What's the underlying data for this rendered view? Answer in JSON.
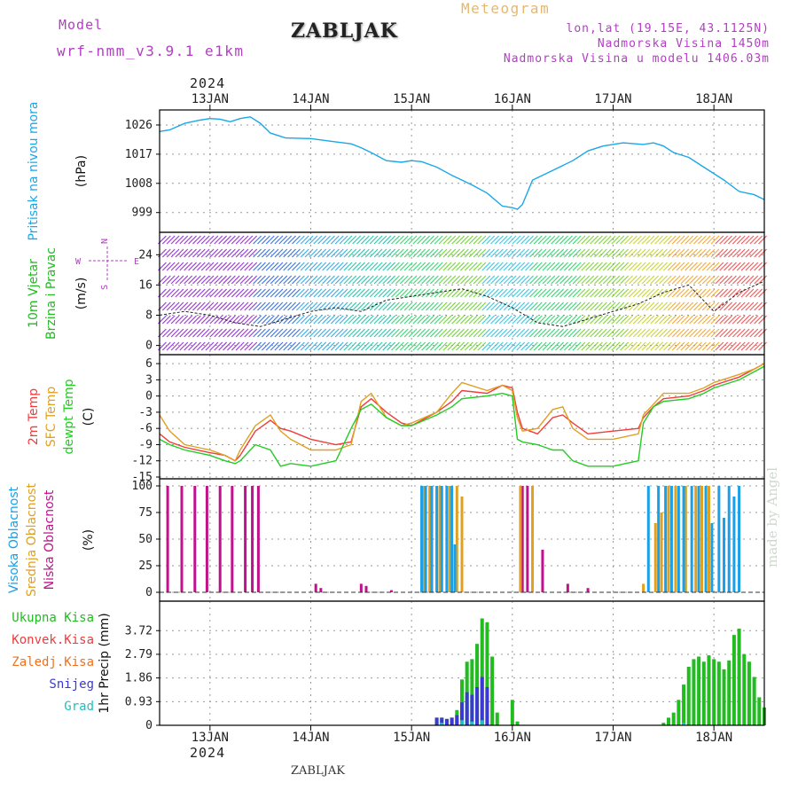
{
  "header": {
    "model_label": "Model",
    "model_name": "wrf-nmm_v3.9.1 e1km",
    "title": "ZABLJAK",
    "meteogram": "Meteogram",
    "lonlat": "lon,lat (19.15E, 43.1125N)",
    "elevation": "Nadmorska Visina 1450m",
    "model_elevation": "Nadmorska Visina u modelu 1406.03m",
    "year_top": "2024",
    "year_bottom": "2024",
    "watermark": "made by Angel",
    "footer": "ZABLJAK"
  },
  "colors": {
    "pressure": "#1aa7e8",
    "temp2m": "#f03c3c",
    "sfc": "#e0a020",
    "dewpt": "#22cc22",
    "high_cloud": "#1aa0e8",
    "mid_cloud": "#e0a020",
    "low_cloud": "#c0128c",
    "total_rain": "#22bb22",
    "conv_rain": "#f03c3c",
    "frozen": "#f07020",
    "snow": "#3a3ad0",
    "hail": "#20c0c0"
  },
  "chart_data": {
    "type": "multi-panel meteogram",
    "x_unit": "days",
    "dates": [
      "13JAN",
      "14JAN",
      "15JAN",
      "16JAN",
      "17JAN",
      "18JAN"
    ],
    "date_days": [
      13,
      14,
      15,
      16,
      17,
      18
    ],
    "xlim": [
      12.5,
      18.5
    ],
    "grid": true,
    "panels": [
      {
        "id": "pressure",
        "type": "line",
        "ylabel_name": "Pritisak na nivou mora",
        "ylabel_unit": "(hPa)",
        "ylim": [
          994,
          1029
        ],
        "yticks": [
          999,
          1008,
          1017,
          1026
        ],
        "series": [
          {
            "color_key": "pressure",
            "x": [
              12.5,
              12.6,
              12.75,
              12.9,
              13.0,
              13.1,
              13.2,
              13.3,
              13.4,
              13.5,
              13.6,
              13.75,
              14.0,
              14.2,
              14.4,
              14.5,
              14.6,
              14.75,
              14.9,
              15.0,
              15.1,
              15.25,
              15.4,
              15.5,
              15.6,
              15.75,
              15.9,
              16.0,
              16.05,
              16.1,
              16.2,
              16.4,
              16.6,
              16.75,
              16.9,
              17.1,
              17.3,
              17.4,
              17.5,
              17.6,
              17.75,
              17.9,
              18.1,
              18.25,
              18.4,
              18.5
            ],
            "y": [
              1024,
              1024.5,
              1026.5,
              1027.5,
              1028,
              1027.8,
              1027,
              1028,
              1028.5,
              1026.5,
              1023.5,
              1022,
              1021.8,
              1021,
              1020.2,
              1019,
              1017.5,
              1015,
              1014.5,
              1015,
              1014.7,
              1013,
              1010.5,
              1009,
              1007.5,
              1005,
              1001,
              1000.5,
              1000,
              1001.5,
              1009,
              1012,
              1015,
              1018,
              1019.5,
              1020.5,
              1020,
              1020.5,
              1019.5,
              1017.5,
              1016,
              1013,
              1009,
              1005.5,
              1004.5,
              1003
            ]
          }
        ]
      },
      {
        "id": "wind",
        "type": "line+wind-barbs",
        "ylabel_name": "10m Vjetar",
        "ylabel_name2": "Brzina i Pravac",
        "ylabel_unit": "(m/s)",
        "compass": [
          "N",
          "W",
          "E",
          "S"
        ],
        "ylim": [
          -1.5,
          29
        ],
        "yticks": [
          0,
          8,
          16,
          24
        ],
        "series": [
          {
            "name": "speed",
            "x": [
              12.5,
              12.75,
              13.0,
              13.25,
              13.5,
              13.75,
              14.0,
              14.25,
              14.5,
              14.75,
              15.0,
              15.25,
              15.5,
              15.75,
              16.0,
              16.25,
              16.5,
              16.75,
              17.0,
              17.25,
              17.5,
              17.75,
              18.0,
              18.25,
              18.5
            ],
            "y": [
              8,
              9,
              8,
              6,
              5,
              7,
              9,
              10,
              9,
              12,
              13,
              14,
              15,
              13,
              10,
              6,
              5,
              7,
              9,
              11,
              14,
              16,
              9,
              14,
              17
            ]
          }
        ]
      },
      {
        "id": "temp",
        "type": "line",
        "ylabel_name": "2m Temp",
        "ylabel_name2": "SFC Temp",
        "ylabel_name3": "dewpt Temp",
        "ylabel_unit": "(C)",
        "ylim": [
          -15,
          7
        ],
        "yticks": [
          -15,
          -12,
          -9,
          -6,
          -3,
          0,
          3,
          6
        ],
        "series": [
          {
            "color_key": "temp2m",
            "x": [
              12.5,
              12.6,
              12.75,
              13.0,
              13.15,
              13.25,
              13.3,
              13.45,
              13.6,
              13.7,
              13.8,
              14.0,
              14.25,
              14.4,
              14.5,
              14.6,
              14.75,
              14.9,
              15.0,
              15.25,
              15.4,
              15.5,
              15.75,
              15.9,
              16.0,
              16.05,
              16.1,
              16.25,
              16.4,
              16.5,
              16.6,
              16.75,
              17.0,
              17.25,
              17.3,
              17.4,
              17.5,
              17.75,
              17.9,
              18.0,
              18.25,
              18.4,
              18.5
            ],
            "y": [
              -7,
              -8.5,
              -9.5,
              -10.5,
              -11,
              -12,
              -11,
              -6.5,
              -4.5,
              -6,
              -6.5,
              -8,
              -9,
              -8.5,
              -2,
              -0.5,
              -3,
              -5,
              -5.5,
              -3,
              -1,
              1,
              0.5,
              2,
              1.5,
              -3,
              -6,
              -7,
              -4,
              -3.5,
              -5,
              -7,
              -6.5,
              -6,
              -4,
              -2,
              -0.5,
              0,
              1,
              2,
              3.5,
              5,
              6
            ]
          },
          {
            "color_key": "sfc",
            "x": [
              12.5,
              12.6,
              12.75,
              13.0,
              13.15,
              13.25,
              13.3,
              13.45,
              13.6,
              13.7,
              13.8,
              14.0,
              14.25,
              14.4,
              14.5,
              14.6,
              14.75,
              14.9,
              15.0,
              15.25,
              15.4,
              15.5,
              15.75,
              15.9,
              16.0,
              16.05,
              16.1,
              16.25,
              16.4,
              16.5,
              16.6,
              16.75,
              17.0,
              17.25,
              17.3,
              17.4,
              17.5,
              17.75,
              17.9,
              18.0,
              18.25,
              18.4,
              18.5
            ],
            "y": [
              -3.5,
              -6.5,
              -9,
              -10,
              -11,
              -12,
              -10,
              -5.5,
              -3.5,
              -6.5,
              -8,
              -10,
              -10,
              -9,
              -1,
              0.5,
              -4,
              -5.5,
              -5,
              -3,
              0.5,
              2.5,
              1,
              2,
              1,
              -4,
              -6.5,
              -6,
              -2.5,
              -2,
              -6,
              -8,
              -8,
              -7,
              -3.5,
              -1.5,
              0.5,
              0.5,
              1.5,
              2.5,
              4,
              5,
              6
            ]
          },
          {
            "color_key": "dewpt",
            "x": [
              12.5,
              12.6,
              12.75,
              13.0,
              13.15,
              13.25,
              13.3,
              13.45,
              13.6,
              13.7,
              13.8,
              14.0,
              14.25,
              14.4,
              14.5,
              14.6,
              14.75,
              14.9,
              15.0,
              15.25,
              15.4,
              15.5,
              15.75,
              15.9,
              16.0,
              16.05,
              16.1,
              16.25,
              16.4,
              16.5,
              16.6,
              16.75,
              17.0,
              17.25,
              17.3,
              17.4,
              17.5,
              17.75,
              17.9,
              18.0,
              18.25,
              18.4,
              18.5
            ],
            "y": [
              -8,
              -9,
              -10,
              -11,
              -12,
              -12.5,
              -12,
              -9,
              -10,
              -13,
              -12.5,
              -13,
              -12,
              -6,
              -2.5,
              -1.5,
              -4,
              -5.5,
              -5.5,
              -3.5,
              -2,
              -0.5,
              0,
              0.5,
              0,
              -8,
              -8.5,
              -9,
              -10,
              -10,
              -12,
              -13,
              -13,
              -12,
              -5,
              -2,
              -1,
              -0.5,
              0.5,
              1.5,
              3,
              4.5,
              5.5
            ]
          }
        ]
      },
      {
        "id": "clouds",
        "type": "bar",
        "ylabel_name": "Visoka Oblacnost",
        "ylabel_name2": "Srednja Oblacnost",
        "ylabel_name3": "Niska Oblacnost",
        "ylabel_unit": "(%)",
        "ylim": [
          0,
          100
        ],
        "yticks": [
          0,
          25,
          50,
          75,
          100
        ],
        "series": [
          {
            "color_key": "low_cloud",
            "x": [
              12.58,
              12.72,
              12.85,
              12.97,
              13.1,
              13.22,
              13.35,
              13.42,
              13.48,
              14.05,
              14.1,
              14.5,
              14.55,
              14.8,
              15.2,
              15.35,
              16.1,
              16.15,
              16.3,
              16.55,
              16.75
            ],
            "y": [
              100,
              100,
              100,
              100,
              100,
              100,
              100,
              100,
              100,
              8,
              4,
              8,
              6,
              2,
              100,
              100,
              100,
              100,
              40,
              8,
              4
            ]
          },
          {
            "color_key": "mid_cloud",
            "x": [
              15.12,
              15.18,
              15.28,
              15.38,
              15.45,
              15.5,
              16.08,
              16.2,
              17.3,
              17.42,
              17.48,
              17.55,
              17.62,
              17.72,
              17.82,
              17.88,
              17.95
            ],
            "y": [
              100,
              100,
              100,
              100,
              100,
              90,
              100,
              100,
              8,
              65,
              75,
              100,
              100,
              100,
              100,
              100,
              100
            ]
          },
          {
            "color_key": "high_cloud",
            "x": [
              15.1,
              15.14,
              15.2,
              15.25,
              15.3,
              15.35,
              15.4,
              15.43,
              17.35,
              17.45,
              17.52,
              17.58,
              17.65,
              17.7,
              17.78,
              17.85,
              17.92,
              17.98,
              18.05,
              18.1,
              18.15,
              18.2,
              18.25
            ],
            "y": [
              100,
              100,
              100,
              100,
              100,
              100,
              100,
              45,
              100,
              100,
              100,
              100,
              100,
              100,
              100,
              100,
              100,
              65,
              100,
              70,
              100,
              90,
              100
            ]
          }
        ]
      },
      {
        "id": "precip",
        "type": "bar",
        "ylabel_name": "1hr Precip",
        "ylabel_unit": "(mm)",
        "legend": [
          "Ukupna Kisa",
          "Konvek.Kisa",
          "Zaledj.Kisa",
          "Snijeg",
          "Grad"
        ],
        "ylim": [
          0,
          4.6
        ],
        "yticks": [
          0,
          0.93,
          1.86,
          2.79,
          3.72
        ],
        "series": [
          {
            "color_key": "total_rain",
            "name": "Ukupna Kisa",
            "x": [
              15.25,
              15.3,
              15.35,
              15.4,
              15.45,
              15.5,
              15.55,
              15.6,
              15.65,
              15.7,
              15.75,
              15.8,
              15.85,
              16.0,
              16.05,
              17.5,
              17.55,
              17.6,
              17.65,
              17.7,
              17.75,
              17.8,
              17.85,
              17.9,
              17.95,
              18.0,
              18.05,
              18.1,
              18.15,
              18.2,
              18.25,
              18.3,
              18.35,
              18.4,
              18.45,
              18.5
            ],
            "y": [
              0.3,
              0.3,
              0.25,
              0.3,
              0.6,
              1.8,
              2.5,
              2.6,
              3.2,
              4.2,
              4.05,
              2.7,
              0.5,
              1.0,
              0.15,
              0.1,
              0.3,
              0.5,
              1.0,
              1.6,
              2.3,
              2.6,
              2.7,
              2.5,
              2.75,
              2.6,
              2.5,
              2.2,
              2.55,
              3.55,
              3.8,
              2.8,
              2.5,
              1.9,
              1.1,
              0.7
            ]
          },
          {
            "color_key": "snow",
            "name": "Snijeg",
            "x": [
              15.25,
              15.3,
              15.35,
              15.4,
              15.45,
              15.5,
              15.55,
              15.6,
              15.65,
              15.7,
              15.75
            ],
            "y": [
              0.3,
              0.3,
              0.25,
              0.3,
              0.4,
              0.9,
              1.3,
              1.2,
              1.5,
              1.9,
              1.5
            ]
          },
          {
            "color_key": "hail",
            "name": "Grad",
            "x": [
              15.3,
              15.5,
              15.6,
              15.7,
              17.7
            ],
            "y": [
              0.1,
              0.2,
              0.15,
              0.2,
              0.1
            ]
          }
        ]
      }
    ]
  }
}
